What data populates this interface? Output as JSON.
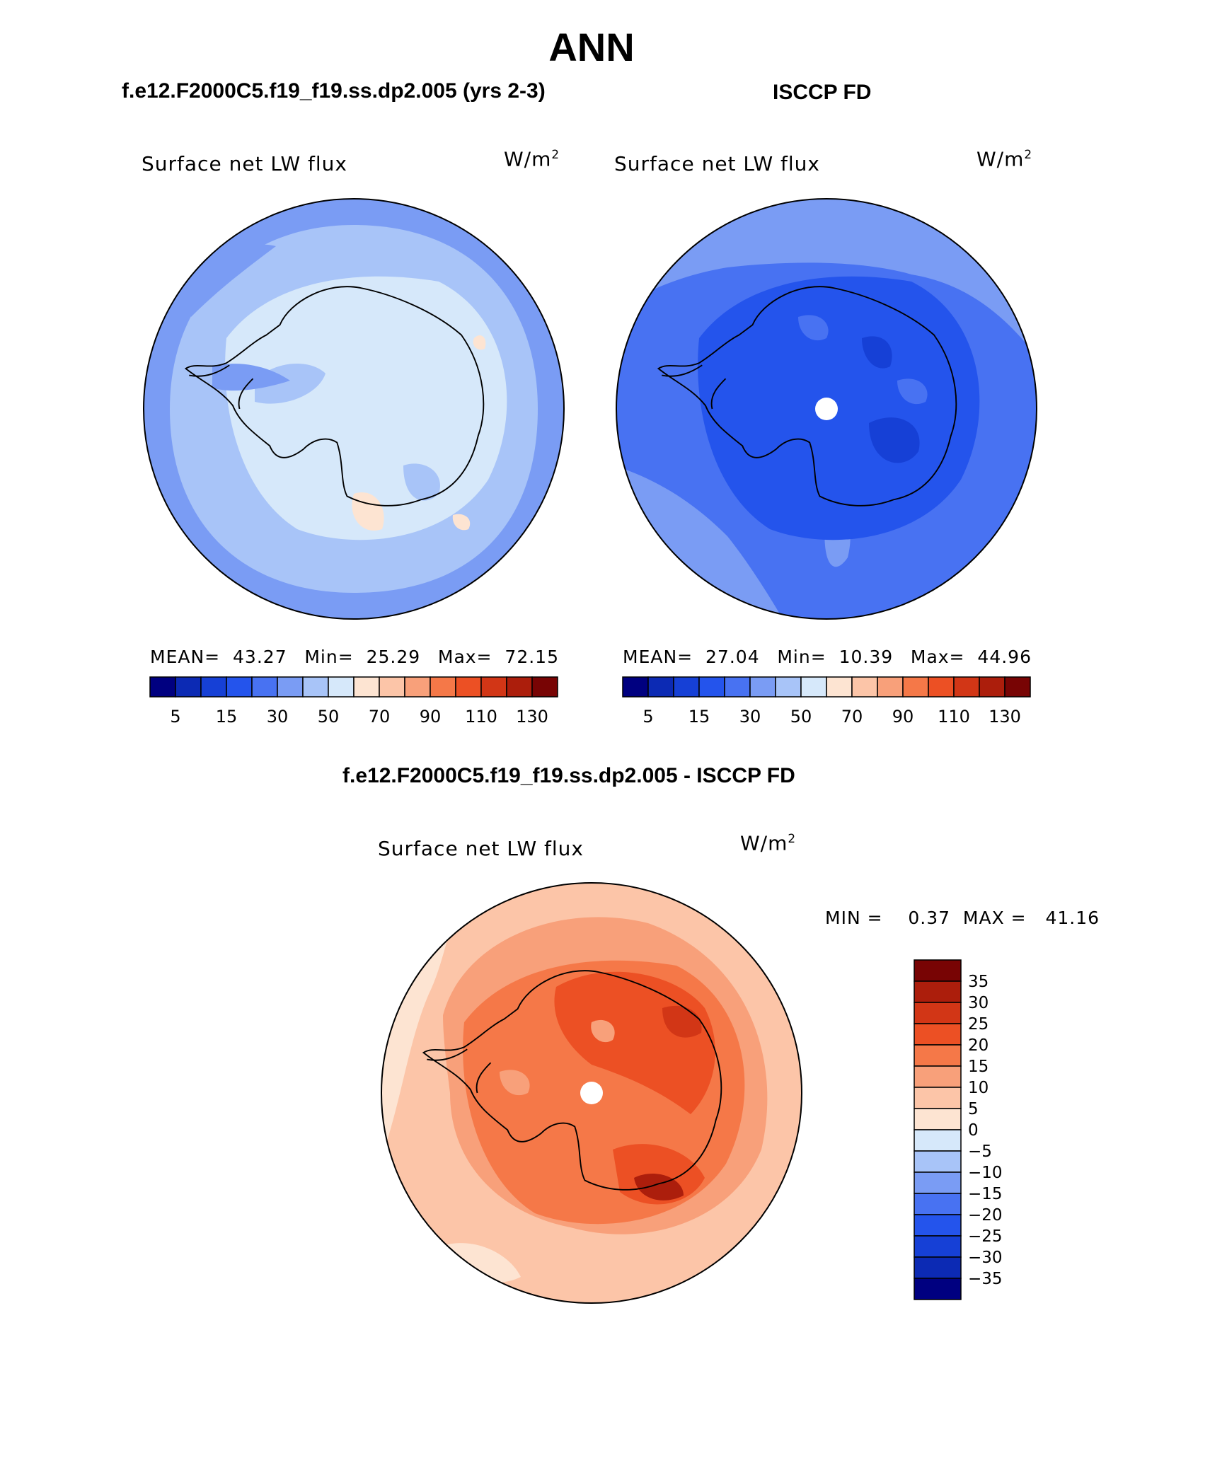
{
  "title": "ANN",
  "panels": {
    "top_left": {
      "header": "f.e12.F2000C5.f19_f19.ss.dp2.005 (yrs 2-3)",
      "variable": "Surface net LW flux",
      "units_base": "W/m",
      "units_exp": "2",
      "stats": {
        "mean_label": "MEAN=",
        "mean": "43.27",
        "min_label": "Min=",
        "min": "25.29",
        "max_label": "Max=",
        "max": "72.15"
      }
    },
    "top_right": {
      "header": "ISCCP FD",
      "variable": "Surface net LW flux",
      "units_base": "W/m",
      "units_exp": "2",
      "stats": {
        "mean_label": "MEAN=",
        "mean": "27.04",
        "min_label": "Min=",
        "min": "10.39",
        "max_label": "Max=",
        "max": "44.96"
      }
    },
    "bottom": {
      "header": "f.e12.F2000C5.f19_f19.ss.dp2.005 - ISCCP FD",
      "variable": "Surface net LW flux",
      "units_base": "W/m",
      "units_exp": "2",
      "stats": {
        "min_label": "MIN =",
        "min": "0.37",
        "max_label": "MAX =",
        "max": "41.16"
      }
    }
  },
  "chart_data": [
    {
      "type": "heatmap",
      "title": "Surface net LW flux",
      "units": "W/m2",
      "projection": "south polar stereographic",
      "colorbar_orientation": "horizontal",
      "colorbar_tick_labels": [
        "5",
        "15",
        "30",
        "50",
        "70",
        "90",
        "110",
        "130"
      ],
      "colorbar_colors": [
        "#000080",
        "#0c2ab4",
        "#1640d6",
        "#2454ec",
        "#4872f2",
        "#7a9cf4",
        "#a8c4f8",
        "#d6e8fa",
        "#fde4d2",
        "#fcc5a8",
        "#f8a07a",
        "#f57848",
        "#ec5024",
        "#d23616",
        "#ac1e0c",
        "#780404"
      ],
      "mean": 43.27,
      "min": 25.29,
      "max": 72.15
    },
    {
      "type": "heatmap",
      "title": "Surface net LW flux",
      "units": "W/m2",
      "projection": "south polar stereographic",
      "colorbar_orientation": "horizontal",
      "colorbar_tick_labels": [
        "5",
        "15",
        "30",
        "50",
        "70",
        "90",
        "110",
        "130"
      ],
      "colorbar_colors": [
        "#000080",
        "#0c2ab4",
        "#1640d6",
        "#2454ec",
        "#4872f2",
        "#7a9cf4",
        "#a8c4f8",
        "#d6e8fa",
        "#fde4d2",
        "#fcc5a8",
        "#f8a07a",
        "#f57848",
        "#ec5024",
        "#d23616",
        "#ac1e0c",
        "#780404"
      ],
      "mean": 27.04,
      "min": 10.39,
      "max": 44.96
    },
    {
      "type": "heatmap",
      "title": "Surface net LW flux",
      "units": "W/m2",
      "projection": "south polar stereographic",
      "colorbar_orientation": "vertical",
      "colorbar_tick_labels": [
        "35",
        "30",
        "25",
        "20",
        "15",
        "10",
        "5",
        "0",
        "−5",
        "−10",
        "−15",
        "−20",
        "−25",
        "−30",
        "−35"
      ],
      "colorbar_colors": [
        "#780404",
        "#ac1e0c",
        "#d23616",
        "#ec5024",
        "#f57848",
        "#f8a07a",
        "#fcc5a8",
        "#fde4d2",
        "#d6e8fa",
        "#a8c4f8",
        "#7a9cf4",
        "#4872f2",
        "#2454ec",
        "#1640d6",
        "#0c2ab4",
        "#000080"
      ],
      "min": 0.37,
      "max": 41.16
    }
  ]
}
